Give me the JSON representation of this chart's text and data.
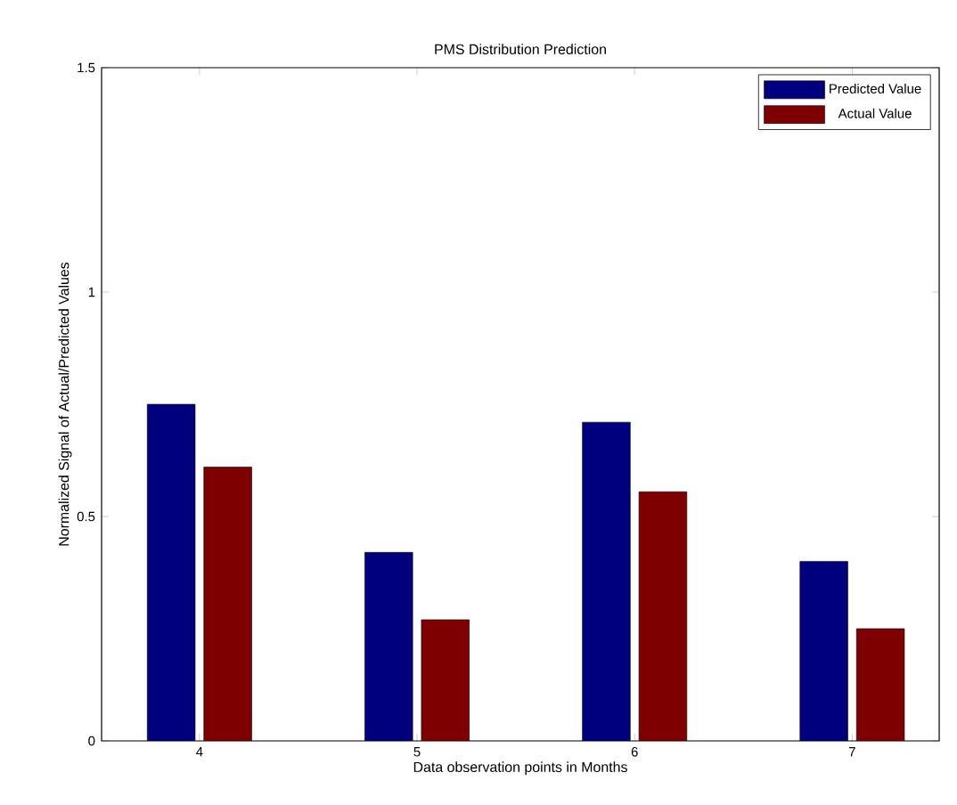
{
  "chart_data": {
    "type": "bar",
    "title": "PMS Distribution Prediction",
    "xlabel": "Data observation points in Months",
    "ylabel": "Normalized Signal of Actual/Predicted Values",
    "categories": [
      "4",
      "5",
      "6",
      "7"
    ],
    "series": [
      {
        "name": "Predicted Value",
        "color": "#00007f",
        "values": [
          0.75,
          0.42,
          0.71,
          0.4
        ]
      },
      {
        "name": "Actual Value",
        "color": "#7f0000",
        "values": [
          0.61,
          0.27,
          0.555,
          0.25
        ]
      }
    ],
    "ylim": [
      0,
      1.5
    ],
    "yticks": [
      0,
      0.5,
      1,
      1.5
    ],
    "legend": "top right",
    "grid": false
  }
}
